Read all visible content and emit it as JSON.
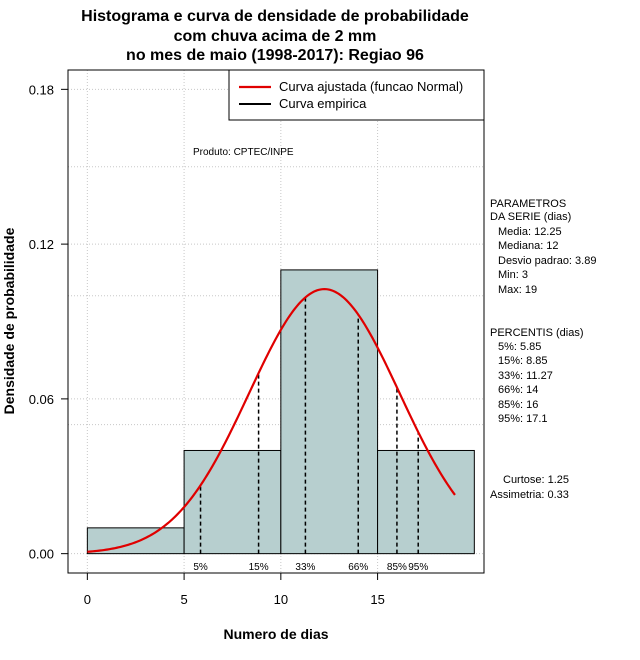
{
  "chart_data": {
    "type": "bar",
    "title_lines": [
      "Histograma e curva de densidade de probabilidade",
      "com chuva acima de 2 mm",
      "no mes de maio (1998-2017): Regiao 96"
    ],
    "xlabel": "Numero de dias",
    "ylabel": "Densidade de probabilidade",
    "xlim": [
      -1,
      20.5
    ],
    "ylim": [
      -0.0075,
      0.1875
    ],
    "x_ticks": [
      0,
      5,
      10,
      15
    ],
    "x_tick_labels": [
      "0",
      "5",
      "10",
      "15"
    ],
    "y_ticks": [
      0.0,
      0.06,
      0.12,
      0.18
    ],
    "y_tick_labels": [
      "0.00",
      "0.06",
      "0.12",
      "0.18"
    ],
    "grid": true,
    "histogram": {
      "bins": [
        [
          0,
          5
        ],
        [
          5,
          10
        ],
        [
          10,
          15
        ],
        [
          15,
          20
        ]
      ],
      "densities": [
        0.01,
        0.04,
        0.11,
        0.04
      ],
      "fill": "#b7cfcf"
    },
    "normal_curve": {
      "name": "Curva ajustada (funcao Normal)",
      "mean": 12.25,
      "sd": 3.89,
      "x_range": [
        0,
        19
      ],
      "color": "#e00000"
    },
    "legend": [
      {
        "label": "Curva ajustada (funcao Normal)",
        "color": "#e00000"
      },
      {
        "label": "Curva empirica",
        "color": "#000000"
      }
    ],
    "annotation": "Produto: CPTEC/INPE",
    "percentile_lines": [
      {
        "label": "5%",
        "x": 5.85
      },
      {
        "label": "15%",
        "x": 8.85
      },
      {
        "label": "33%",
        "x": 11.27
      },
      {
        "label": "66%",
        "x": 14
      },
      {
        "label": "85%",
        "x": 16
      },
      {
        "label": "95%",
        "x": 17.1
      }
    ]
  },
  "side_panel": {
    "params_header": [
      "PARAMETROS",
      "DA SERIE (dias)"
    ],
    "params": [
      "Media: 12.25",
      "Mediana: 12",
      "Desvio padrao: 3.89",
      "Min: 3",
      "Max: 19"
    ],
    "percentis_header": "PERCENTIS (dias)",
    "percentis": [
      "5%: 5.85",
      "15%: 8.85",
      "33%: 11.27",
      "66%: 14",
      "85%: 16",
      "95%: 17.1"
    ],
    "curtose": "Curtose: 1.25",
    "assimetria": "Assimetria: 0.33"
  }
}
